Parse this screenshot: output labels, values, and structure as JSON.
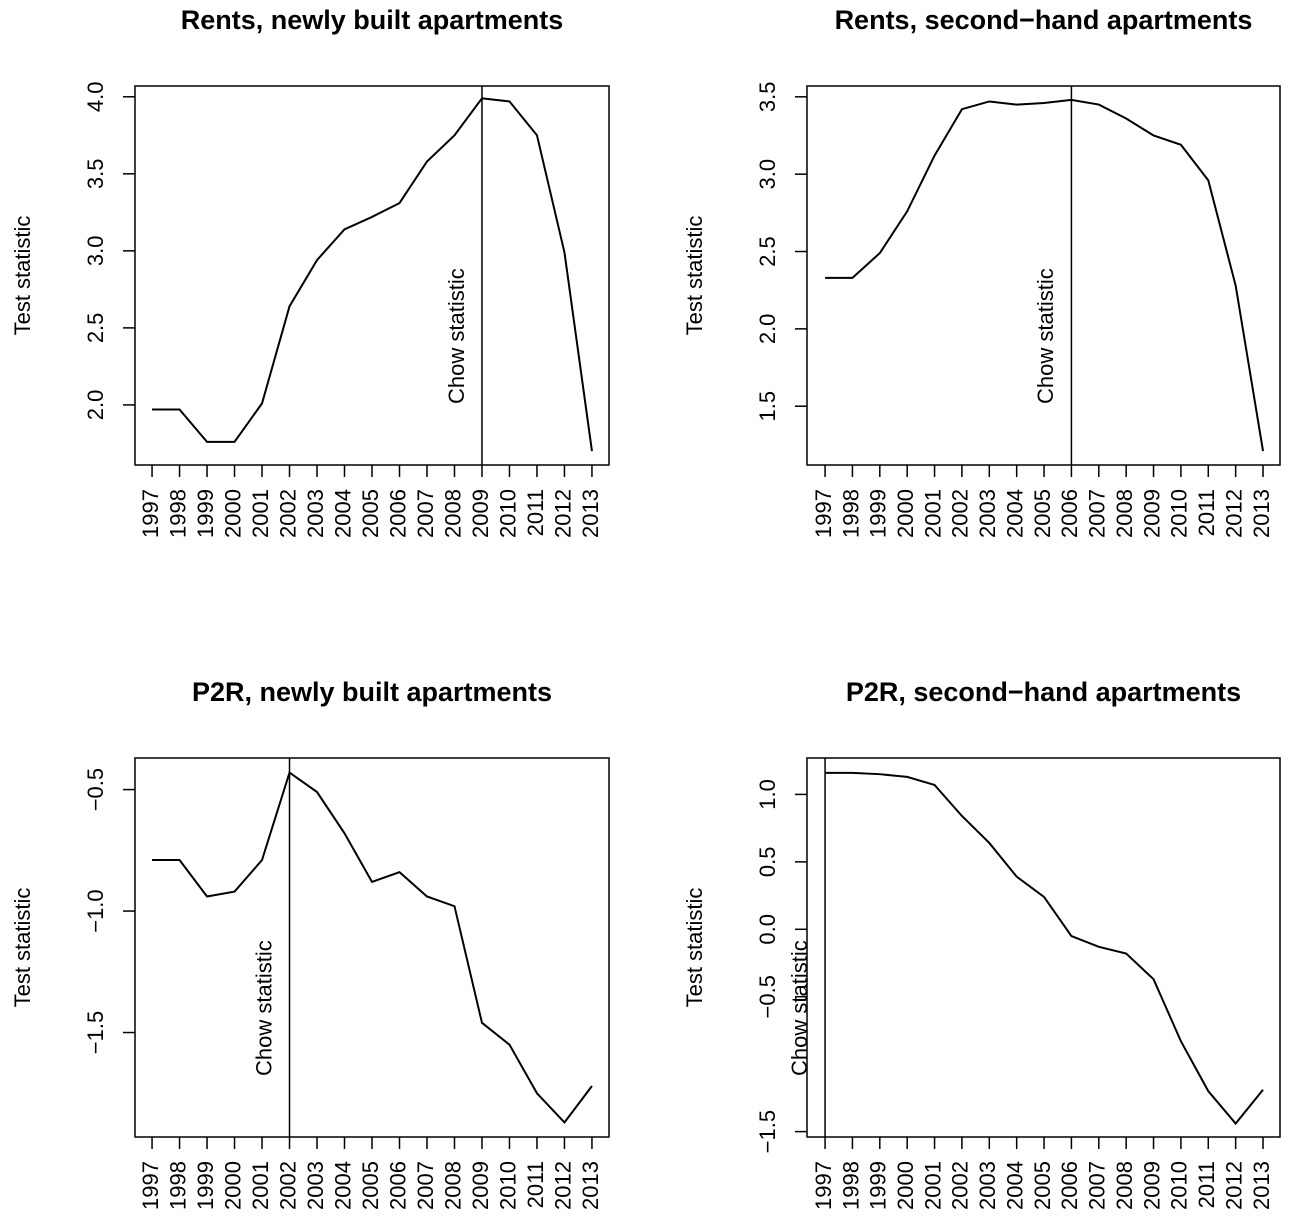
{
  "chart_data": [
    {
      "type": "line",
      "title": "Rents, newly built apartments",
      "ylabel": "Test statistic",
      "x": [
        1997,
        1998,
        1999,
        2000,
        2001,
        2002,
        2003,
        2004,
        2005,
        2006,
        2007,
        2008,
        2009,
        2010,
        2011,
        2012,
        2013
      ],
      "values": [
        1.97,
        1.97,
        1.76,
        1.76,
        2.01,
        2.64,
        2.94,
        3.14,
        3.22,
        3.31,
        3.58,
        3.75,
        3.99,
        3.97,
        3.75,
        2.99,
        1.7
      ],
      "color": "#000000",
      "xlim": [
        1996.38,
        2013.62
      ],
      "xticks": [
        1997,
        1998,
        1999,
        2000,
        2001,
        2002,
        2003,
        2004,
        2005,
        2006,
        2007,
        2008,
        2009,
        2010,
        2011,
        2012,
        2013
      ],
      "ylim": [
        1.61,
        4.07
      ],
      "yticks": [
        {
          "value": 2,
          "label": "2.0"
        },
        2.5,
        {
          "value": 3,
          "label": "3.0"
        },
        3.5,
        {
          "value": 4,
          "label": "4.0"
        }
      ],
      "annotation": {
        "text": "Chow statistic",
        "x": 2009
      }
    },
    {
      "type": "line",
      "title": "Rents, second−hand apartments",
      "ylabel": "Test statistic",
      "x": [
        1997,
        1998,
        1999,
        2000,
        2001,
        2002,
        2003,
        2004,
        2005,
        2006,
        2007,
        2008,
        2009,
        2010,
        2011,
        2012,
        2013
      ],
      "values": [
        2.33,
        2.33,
        2.49,
        2.76,
        3.12,
        3.42,
        3.47,
        3.45,
        3.46,
        3.48,
        3.45,
        3.36,
        3.25,
        3.19,
        2.96,
        2.28,
        1.21
      ],
      "color": "#000000",
      "xlim": [
        1996.34,
        2013.62
      ],
      "xticks": [
        1997,
        1998,
        1999,
        2000,
        2001,
        2002,
        2003,
        2004,
        2005,
        2006,
        2007,
        2008,
        2009,
        2010,
        2011,
        2012,
        2013
      ],
      "ylim": [
        1.12,
        3.57
      ],
      "yticks": [
        1.5,
        {
          "value": 2,
          "label": "2.0"
        },
        2.5,
        {
          "value": 3,
          "label": "3.0"
        },
        3.5
      ],
      "annotation": {
        "text": "Chow statistic",
        "x": 2006
      }
    },
    {
      "type": "line",
      "title": "P2R, newly built apartments",
      "ylabel": "Test statistic",
      "x": [
        1997,
        1998,
        1999,
        2000,
        2001,
        2002,
        2003,
        2004,
        2005,
        2006,
        2007,
        2008,
        2009,
        2010,
        2011,
        2012,
        2013
      ],
      "values": [
        -0.79,
        -0.79,
        -0.94,
        -0.92,
        -0.79,
        -0.43,
        -0.51,
        -0.68,
        -0.88,
        -0.84,
        -0.94,
        -0.98,
        -1.46,
        -1.55,
        -1.75,
        -1.87,
        -1.72
      ],
      "color": "#000000",
      "xlim": [
        1996.38,
        2013.62
      ],
      "xticks": [
        1997,
        1998,
        1999,
        2000,
        2001,
        2002,
        2003,
        2004,
        2005,
        2006,
        2007,
        2008,
        2009,
        2010,
        2011,
        2012,
        2013
      ],
      "ylim": [
        -1.93,
        -0.37
      ],
      "yticks": [
        {
          "value": -1.5,
          "label": "−1.5"
        },
        {
          "value": -1,
          "label": "−1.0"
        },
        {
          "value": -0.5,
          "label": "−0.5"
        }
      ],
      "annotation": {
        "text": "Chow statistic",
        "x": 2002
      }
    },
    {
      "type": "line",
      "title": "P2R, second−hand apartments",
      "ylabel": "Test statistic",
      "x": [
        1997,
        1998,
        1999,
        2000,
        2001,
        2002,
        2003,
        2004,
        2005,
        2006,
        2007,
        2008,
        2009,
        2010,
        2011,
        2012,
        2013
      ],
      "values": [
        1.16,
        1.16,
        1.15,
        1.13,
        1.07,
        0.84,
        0.64,
        0.39,
        0.24,
        -0.05,
        -0.13,
        -0.18,
        -0.37,
        -0.83,
        -1.2,
        -1.44,
        -1.19
      ],
      "color": "#000000",
      "xlim": [
        1996.34,
        2013.62
      ],
      "xticks": [
        1997,
        1998,
        1999,
        2000,
        2001,
        2002,
        2003,
        2004,
        2005,
        2006,
        2007,
        2008,
        2009,
        2010,
        2011,
        2012,
        2013
      ],
      "ylim": [
        -1.54,
        1.27
      ],
      "yticks": [
        {
          "value": -1.5,
          "label": "−1.5"
        },
        {
          "value": -0.5,
          "label": "−0.5"
        },
        {
          "value": 0,
          "label": "0.0"
        },
        0.5,
        {
          "value": 1,
          "label": "1.0"
        }
      ],
      "annotation": {
        "text": "Chow statistic",
        "x": 1997
      }
    }
  ]
}
